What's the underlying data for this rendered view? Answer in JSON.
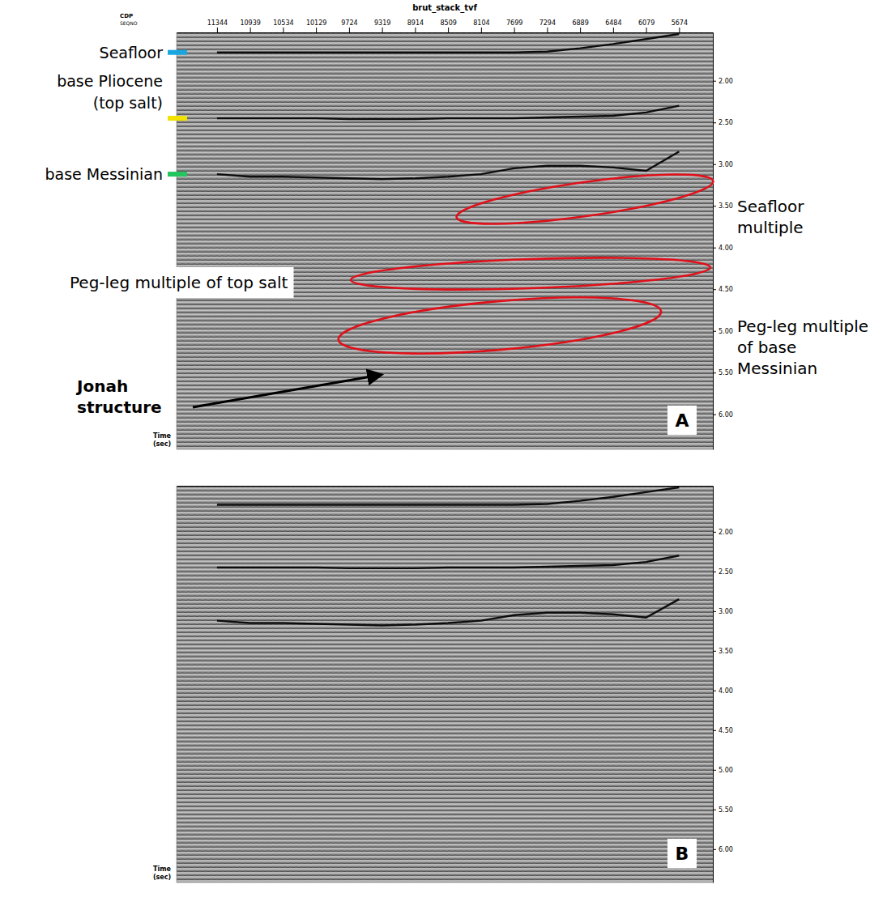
{
  "chart_data": [
    {
      "type": "line",
      "title": "brut_stack_tvf",
      "x_label": "CDP",
      "x_sublabel": "SEQNO",
      "y_label": "Time (sec)",
      "panel_label": "A",
      "x": [
        11344,
        10939,
        10534,
        10129,
        9724,
        9319,
        8914,
        8509,
        8104,
        7699,
        7294,
        6889,
        6484,
        6079,
        5674
      ],
      "xlim": [
        11840,
        5260
      ],
      "xticks": [
        11344,
        10939,
        10534,
        10129,
        9724,
        9319,
        8914,
        8509,
        8104,
        7699,
        7294,
        6889,
        6484,
        6079,
        5674
      ],
      "ylim": [
        1.42,
        6.42
      ],
      "yticks": [
        {
          "value": 2,
          "label": "2.00"
        },
        {
          "value": 2.5,
          "label": "2.50"
        },
        {
          "value": 3,
          "label": "3.00"
        },
        {
          "value": 3.5,
          "label": "3.50"
        },
        {
          "value": 4,
          "label": "4.00"
        },
        {
          "value": 4.5,
          "label": "4.50"
        },
        {
          "value": 5,
          "label": "5.00"
        },
        {
          "value": 5.5,
          "label": "5.50"
        },
        {
          "value": 6,
          "label": "6.00"
        }
      ],
      "series": [
        {
          "name": "Seafloor",
          "color": "#1aa7e0",
          "values": [
            1.66,
            1.66,
            1.66,
            1.66,
            1.66,
            1.66,
            1.66,
            1.66,
            1.66,
            1.66,
            1.65,
            1.61,
            1.56,
            1.5,
            1.44
          ]
        },
        {
          "name": "base Pliocene (top salt)",
          "color": "#f2e200",
          "values": [
            2.45,
            2.45,
            2.45,
            2.45,
            2.46,
            2.46,
            2.46,
            2.45,
            2.45,
            2.45,
            2.44,
            2.43,
            2.42,
            2.38,
            2.3
          ]
        },
        {
          "name": "base Messinian",
          "color": "#22c55e",
          "values": [
            3.12,
            3.15,
            3.15,
            3.16,
            3.17,
            3.18,
            3.17,
            3.15,
            3.12,
            3.05,
            3.02,
            3.02,
            3.04,
            3.08,
            2.85
          ]
        }
      ],
      "annotations": [
        "Seafloor multiple",
        "Peg-leg multiple of top salt",
        "Peg-leg multiple of base Messinian",
        "Jonah structure"
      ],
      "tick_labels": true
    },
    {
      "type": "line",
      "y_label": "Time (sec)",
      "panel_label": "B",
      "x": [
        11344,
        10939,
        10534,
        10129,
        9724,
        9319,
        8914,
        8509,
        8104,
        7699,
        7294,
        6889,
        6484,
        6079,
        5674
      ],
      "xlim": [
        11840,
        5260
      ],
      "ylim": [
        1.42,
        6.42
      ],
      "yticks": [
        {
          "value": 2,
          "label": "2.00"
        },
        {
          "value": 2.5,
          "label": "2.50"
        },
        {
          "value": 3,
          "label": "3.00"
        },
        {
          "value": 3.5,
          "label": "3.50"
        },
        {
          "value": 4,
          "label": "4.00"
        },
        {
          "value": 4.5,
          "label": "4.50"
        },
        {
          "value": 5,
          "label": "5.00"
        },
        {
          "value": 5.5,
          "label": "5.50"
        },
        {
          "value": 6,
          "label": "6.00"
        }
      ],
      "series": [
        {
          "values": [
            1.66,
            1.66,
            1.66,
            1.66,
            1.66,
            1.66,
            1.66,
            1.66,
            1.66,
            1.66,
            1.65,
            1.61,
            1.56,
            1.5,
            1.44
          ]
        },
        {
          "values": [
            2.45,
            2.45,
            2.45,
            2.45,
            2.46,
            2.46,
            2.46,
            2.45,
            2.45,
            2.45,
            2.44,
            2.43,
            2.42,
            2.38,
            2.3
          ]
        },
        {
          "values": [
            3.12,
            3.15,
            3.15,
            3.16,
            3.17,
            3.18,
            3.17,
            3.15,
            3.12,
            3.05,
            3.02,
            3.02,
            3.04,
            3.08,
            2.85
          ]
        }
      ],
      "tick_labels": "y"
    }
  ]
}
